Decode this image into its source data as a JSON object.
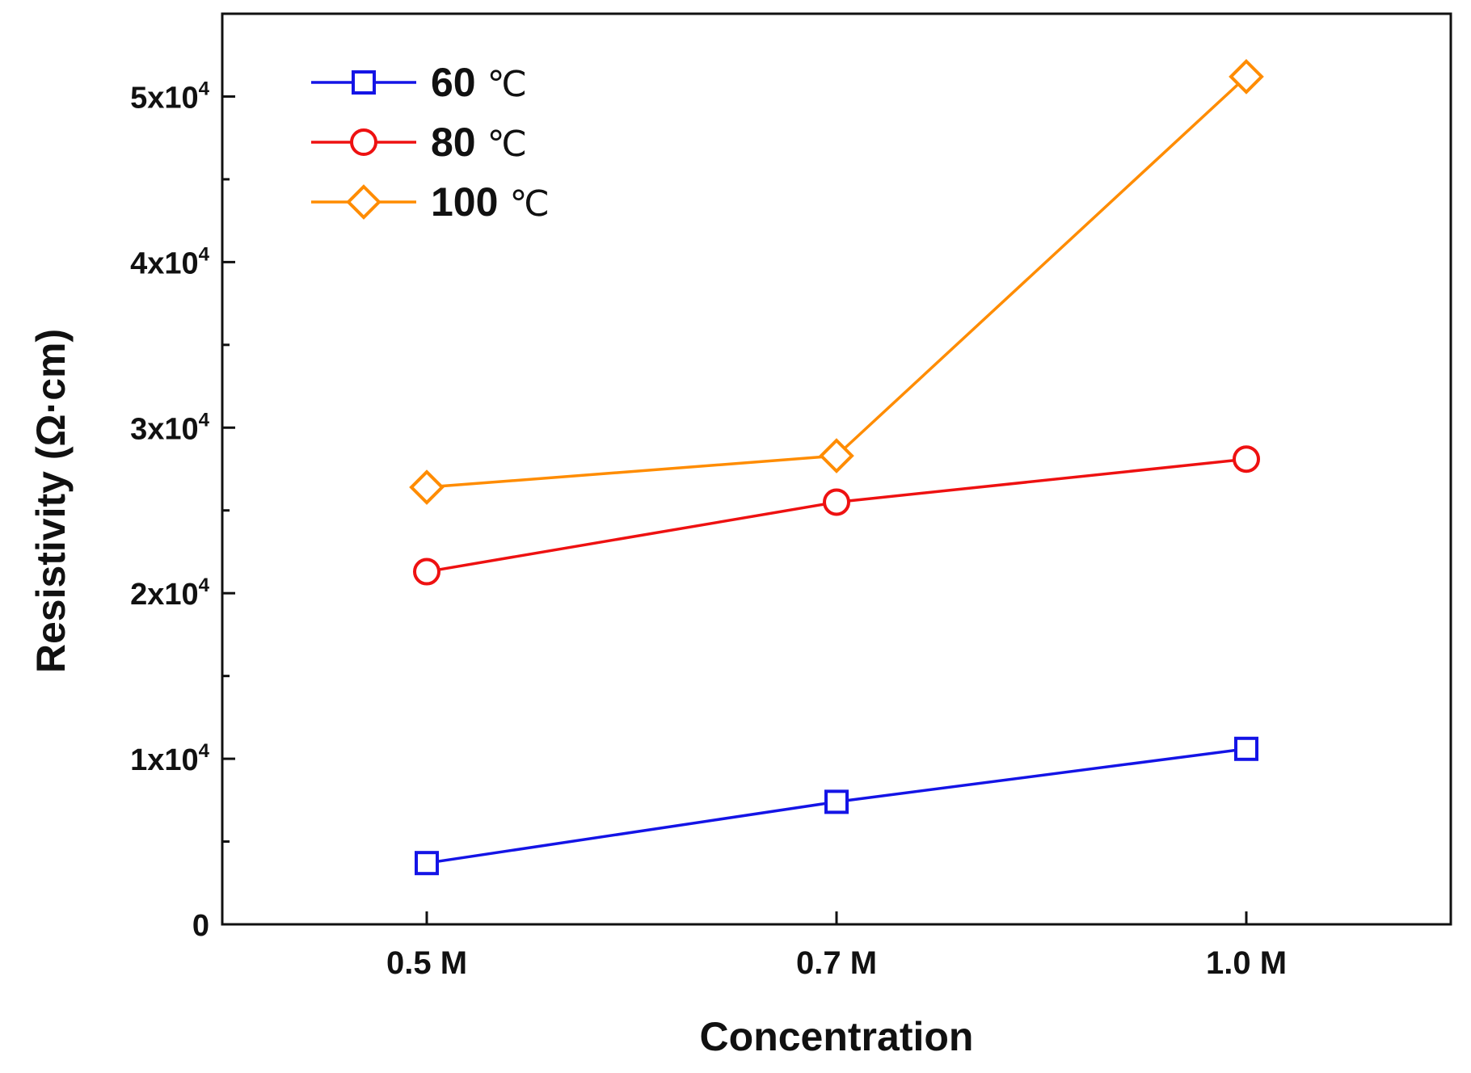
{
  "chart_data": {
    "type": "line",
    "title": "",
    "xlabel": "Concentration",
    "ylabel": "Resistivity (Ω·cm)",
    "categories": [
      "0.5 M",
      "0.7 M",
      "1.0 M"
    ],
    "ylim": [
      0,
      55000
    ],
    "y_ticks": [
      {
        "value": 0,
        "base": "0",
        "exp": ""
      },
      {
        "value": 10000,
        "base": "1x10",
        "exp": "4"
      },
      {
        "value": 20000,
        "base": "2x10",
        "exp": "4"
      },
      {
        "value": 30000,
        "base": "3x10",
        "exp": "4"
      },
      {
        "value": 40000,
        "base": "4x10",
        "exp": "4"
      },
      {
        "value": 50000,
        "base": "5x10",
        "exp": "4"
      }
    ],
    "legend_position": "top-left",
    "series": [
      {
        "name": "60",
        "unit": "℃",
        "marker": "square",
        "color": "#1414e6",
        "values": [
          3700,
          7400,
          10600
        ]
      },
      {
        "name": "80",
        "unit": "℃",
        "marker": "circle",
        "color": "#ee1111",
        "values": [
          21300,
          25500,
          28100
        ]
      },
      {
        "name": "100",
        "unit": "℃",
        "marker": "diamond",
        "color": "#ff8c00",
        "values": [
          26400,
          28300,
          51200
        ]
      }
    ]
  }
}
